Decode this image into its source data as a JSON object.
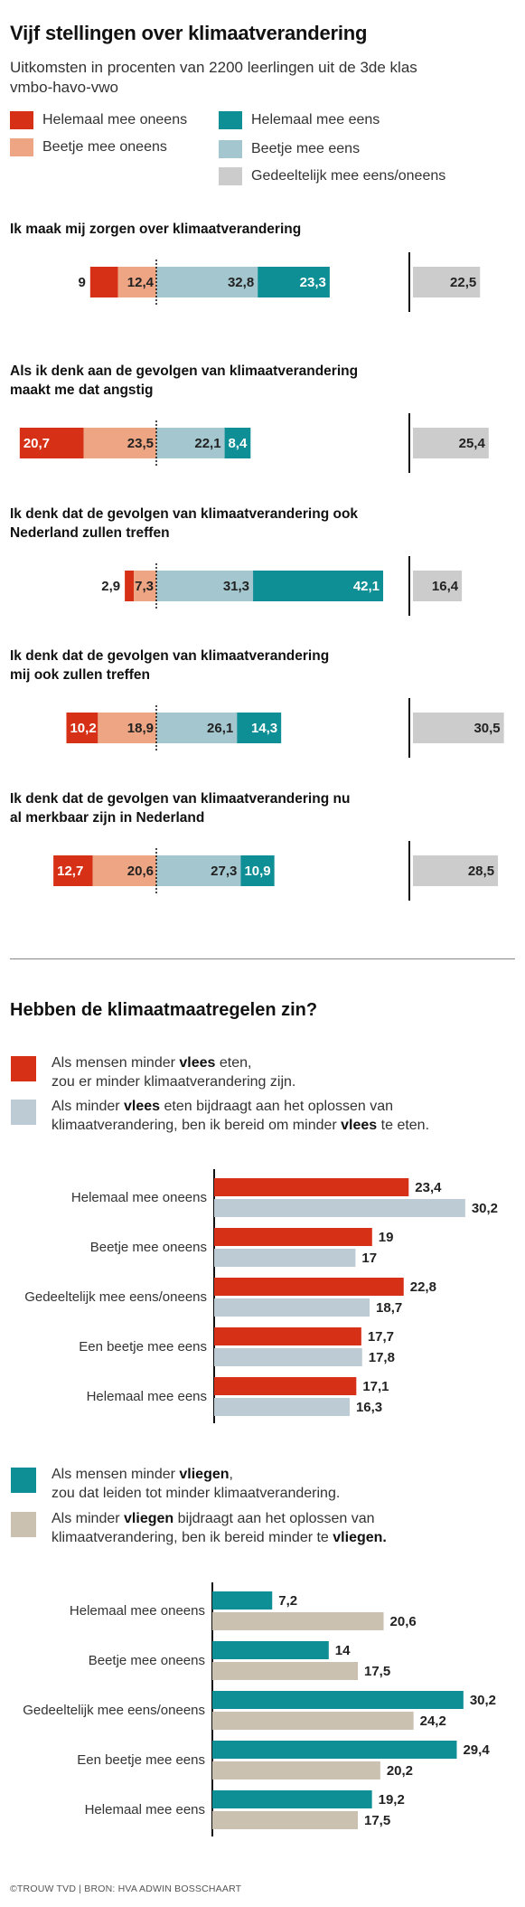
{
  "colors": {
    "helemaal_oneens": "#d63016",
    "beetje_oneens": "#eea583",
    "helemaal_eens": "#0e8f95",
    "beetje_eens": "#a3c6cf",
    "gedeeltelijk": "#cccccc",
    "vlees_a": "#d63016",
    "vlees_b": "#bccbd4",
    "vliegen_a": "#0e8f95",
    "vliegen_b": "#cbc1b0"
  },
  "header": {
    "title": "Vijf stellingen over klimaatverandering",
    "subtitle": "Uitkomsten in procenten van 2200 leerlingen uit de 3de klas vmbo-havo-vwo"
  },
  "legend": {
    "helemaal_oneens": "Helemaal mee oneens",
    "beetje_oneens": "Beetje mee oneens",
    "helemaal_eens": "Helemaal mee eens",
    "beetje_eens": "Beetje mee eens",
    "gedeeltelijk": "Gedeeltelijk mee eens/oneens"
  },
  "section2": {
    "title": "Hebben de klimaatmaatregelen zin?",
    "vlees_a_line1_pre": "Als mensen minder ",
    "vlees_a_line1_bold": "vlees",
    "vlees_a_line1_post": " eten,",
    "vlees_a_line2": "zou er minder klimaatverandering zijn.",
    "vlees_b_line1_pre": "Als minder ",
    "vlees_b_line1_bold": "vlees",
    "vlees_b_line1_post": " eten bijdraagt aan het oplossen van",
    "vlees_b_line2_pre": "klimaatverandering, ben ik bereid om minder ",
    "vlees_b_line2_bold": "vlees",
    "vlees_b_line2_post": " te eten.",
    "vliegen_a_line1_pre": "Als mensen minder ",
    "vliegen_a_line1_bold": "vliegen",
    "vliegen_a_line1_post": ",",
    "vliegen_a_line2": "zou dat leiden tot minder klimaatverandering.",
    "vliegen_b_line1_pre": "Als minder ",
    "vliegen_b_line1_bold": "vliegen",
    "vliegen_b_line1_post": " bijdraagt aan het oplossen van",
    "vliegen_b_line2_pre": "klimaatverandering, ben ik bereid minder te ",
    "vliegen_b_line2_bold": "vliegen."
  },
  "source": "©TROUW TVD | BRON: HVA ADWIN BOSSCHAART",
  "chart_data": [
    {
      "type": "bar",
      "title": "Vijf stellingen over klimaatverandering",
      "stacked": "diverging",
      "categories": [
        "Ik maak mij zorgen over klimaatverandering",
        "Als ik denk aan de gevolgen van klimaatverandering maakt me dat angstig",
        "Ik denk dat de gevolgen van klimaatverandering ook Nederland zullen treffen",
        "Ik denk dat de gevolgen van klimaatverandering mij ook zullen treffen",
        "Ik denk dat de gevolgen van klimaatverandering nu al merkbaar zijn in Nederland"
      ],
      "category_lines": [
        [
          "Ik maak mij zorgen over klimaatverandering"
        ],
        [
          "Als ik denk aan de gevolgen van klimaatverandering",
          "maakt me dat angstig"
        ],
        [
          "Ik denk dat de gevolgen van klimaatverandering ook",
          "Nederland zullen treffen"
        ],
        [
          "Ik denk dat de gevolgen van klimaatverandering",
          "mij ook zullen treffen"
        ],
        [
          "Ik denk dat de gevolgen van klimaatverandering nu",
          "al merkbaar zijn in Nederland"
        ]
      ],
      "series": [
        {
          "name": "Helemaal mee oneens",
          "values": [
            9,
            20.7,
            2.9,
            10.2,
            12.7
          ],
          "labels": [
            "9",
            "20,7",
            "2,9",
            "10,2",
            "12,7"
          ]
        },
        {
          "name": "Beetje mee oneens",
          "values": [
            12.4,
            23.5,
            7.3,
            18.9,
            20.6
          ],
          "labels": [
            "12,4",
            "23,5",
            "7,3",
            "18,9",
            "20,6"
          ]
        },
        {
          "name": "Beetje mee eens",
          "values": [
            32.8,
            22.1,
            31.3,
            26.1,
            27.3
          ],
          "labels": [
            "32,8",
            "22,1",
            "31,3",
            "26,1",
            "27,3"
          ]
        },
        {
          "name": "Helemaal mee eens",
          "values": [
            23.3,
            8.4,
            42.1,
            14.3,
            10.9
          ],
          "labels": [
            "23,3",
            "8,4",
            "42,1",
            "14,3",
            "10,9"
          ]
        },
        {
          "name": "Gedeeltelijk mee eens/oneens",
          "values": [
            22.5,
            25.4,
            16.4,
            30.5,
            28.5
          ],
          "labels": [
            "22,5",
            "25,4",
            "16,4",
            "30,5",
            "28,5"
          ]
        }
      ]
    },
    {
      "type": "bar",
      "orientation": "horizontal",
      "categories": [
        "Helemaal mee oneens",
        "Beetje mee oneens",
        "Gedeeltelijk mee eens/oneens",
        "Een beetje mee eens",
        "Helemaal mee eens"
      ],
      "series": [
        {
          "values": [
            23.4,
            19,
            22.8,
            17.7,
            17.1
          ],
          "labels": [
            "23,4",
            "19",
            "22,8",
            "17,7",
            "17,1"
          ]
        },
        {
          "values": [
            30.2,
            17,
            18.7,
            17.8,
            16.3
          ],
          "labels": [
            "30,2",
            "17",
            "18,7",
            "17,8",
            "16,3"
          ]
        }
      ]
    },
    {
      "type": "bar",
      "orientation": "horizontal",
      "categories": [
        "Helemaal mee oneens",
        "Beetje mee oneens",
        "Gedeeltelijk mee eens/oneens",
        "Een beetje mee eens",
        "Helemaal mee eens"
      ],
      "series": [
        {
          "values": [
            7.2,
            14,
            30.2,
            29.4,
            19.2
          ],
          "labels": [
            "7,2",
            "14",
            "30,2",
            "29,4",
            "19,2"
          ]
        },
        {
          "values": [
            20.6,
            17.5,
            24.2,
            20.2,
            17.5
          ],
          "labels": [
            "20,6",
            "17,5",
            "24,2",
            "20,2",
            "17,5"
          ]
        }
      ]
    }
  ]
}
